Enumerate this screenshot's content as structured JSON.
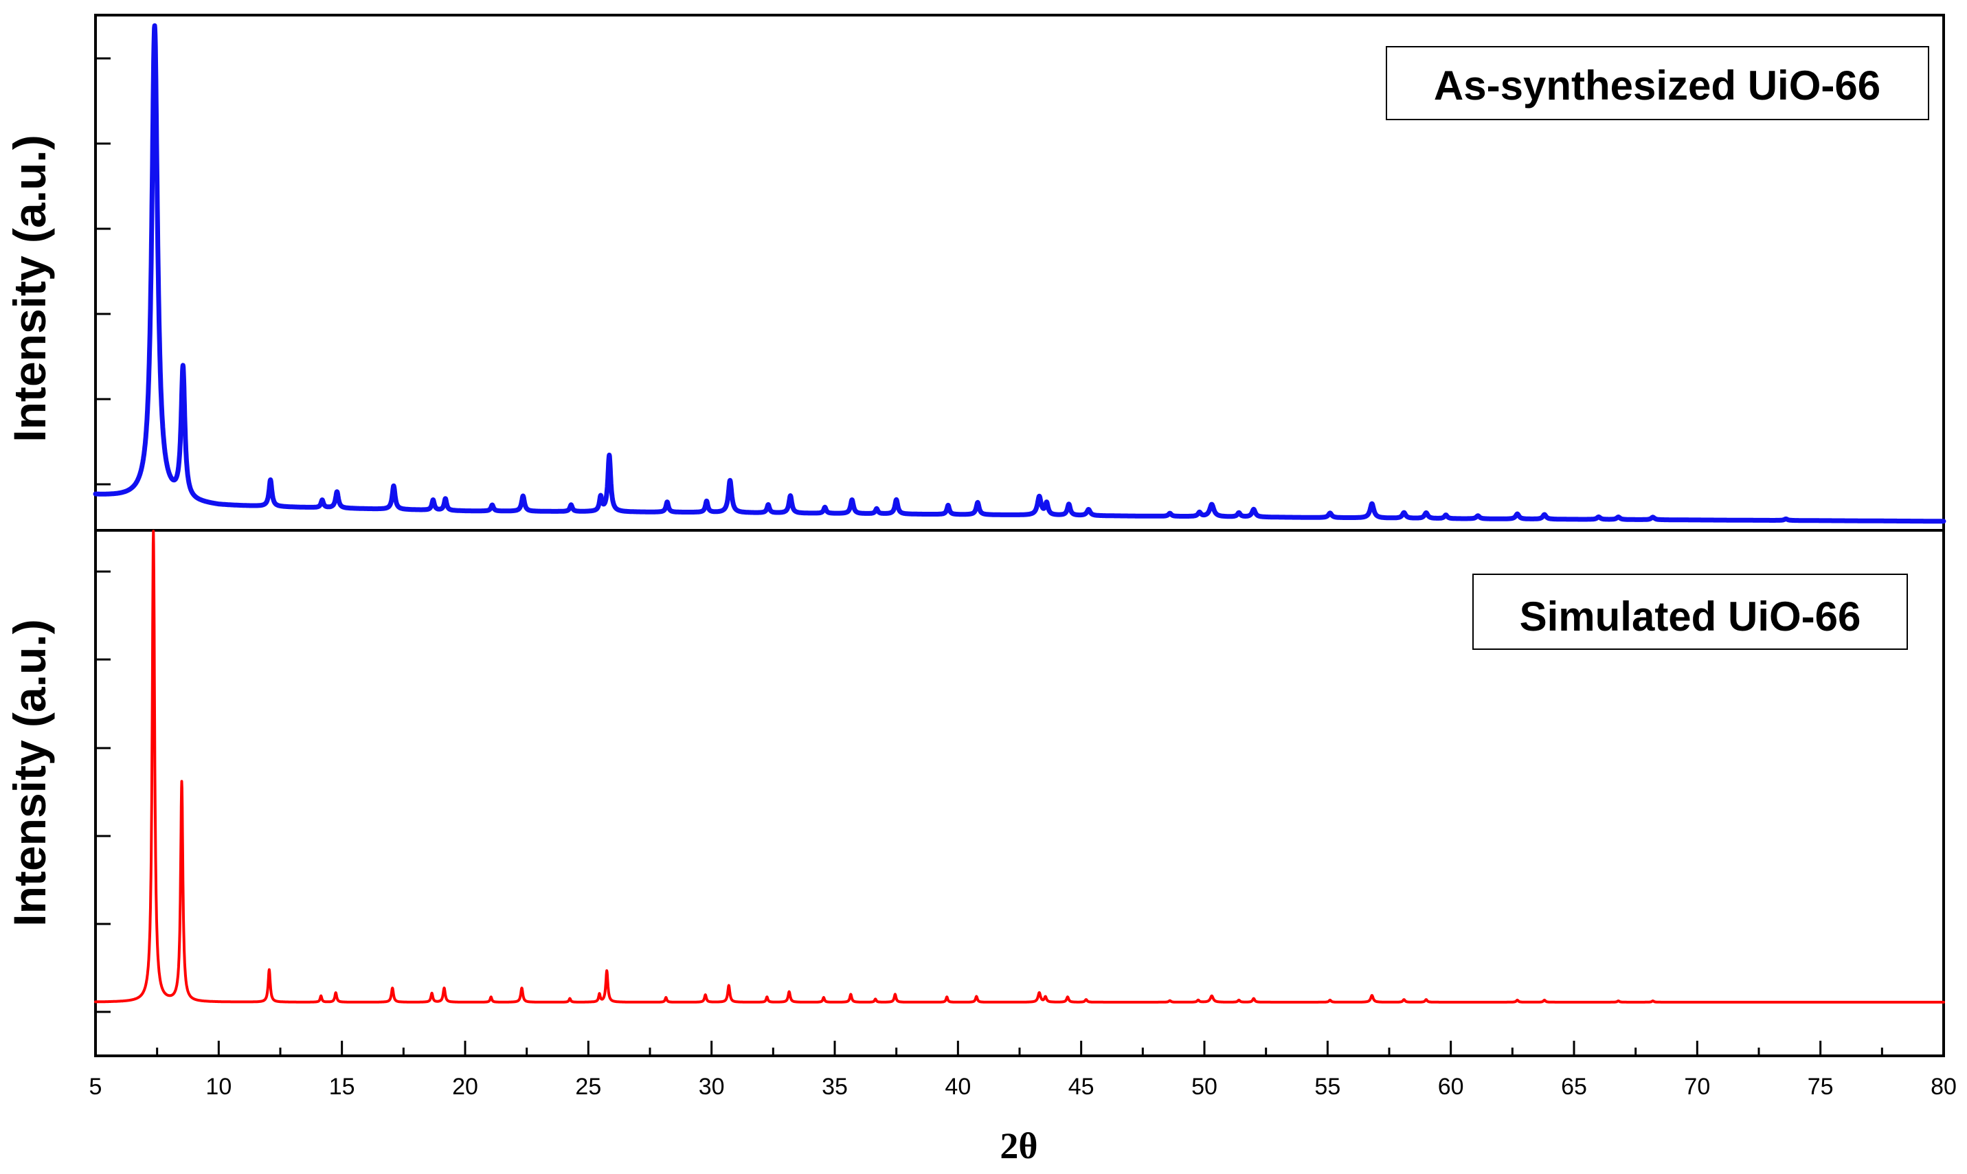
{
  "chart_data": {
    "type": "line",
    "layout": "two vertically stacked panels sharing the x axis",
    "xlabel": "2θ",
    "xlim": [
      5,
      80
    ],
    "x_ticks": [
      "5",
      "10",
      "15",
      "20",
      "25",
      "30",
      "35",
      "40",
      "45",
      "50",
      "55",
      "60",
      "65",
      "70",
      "75",
      "80"
    ],
    "y_tick_labels": "none",
    "grid": false,
    "panels": [
      {
        "position": "top",
        "ylabel": "Intensity (a.u.)",
        "ylim": [
          0,
          100
        ],
        "legend_text": "As-synthesized UiO-66",
        "legend_position": "top-right",
        "series": [
          {
            "name": "As-synthesized UiO-66",
            "color": "#1010f0",
            "style": "thick line",
            "baseline": [
              [
                5,
                6.5
              ],
              [
                10,
                4.5
              ],
              [
                20,
                3.5
              ],
              [
                30,
                3.2
              ],
              [
                45,
                2.6
              ],
              [
                60,
                2.0
              ],
              [
                80,
                1.5
              ]
            ],
            "peaks": [
              [
                7.4,
                92.5,
                0.14
              ],
              [
                8.55,
                25.5,
                0.09
              ],
              [
                12.1,
                5.2,
                0.07
              ],
              [
                14.2,
                1.5,
                0.06
              ],
              [
                14.8,
                3.2,
                0.07
              ],
              [
                17.1,
                4.6,
                0.07
              ],
              [
                18.7,
                2.0,
                0.06
              ],
              [
                19.2,
                2.3,
                0.06
              ],
              [
                21.1,
                1.2,
                0.06
              ],
              [
                22.35,
                3.0,
                0.07
              ],
              [
                24.3,
                1.3,
                0.06
              ],
              [
                25.5,
                2.8,
                0.06
              ],
              [
                25.85,
                11.0,
                0.07
              ],
              [
                28.2,
                2.0,
                0.06
              ],
              [
                29.8,
                2.2,
                0.06
              ],
              [
                30.75,
                6.3,
                0.08
              ],
              [
                32.3,
                1.6,
                0.06
              ],
              [
                33.2,
                3.4,
                0.07
              ],
              [
                34.6,
                1.2,
                0.06
              ],
              [
                35.7,
                2.7,
                0.07
              ],
              [
                36.7,
                1.0,
                0.06
              ],
              [
                37.5,
                2.8,
                0.07
              ],
              [
                39.6,
                1.8,
                0.06
              ],
              [
                40.8,
                2.4,
                0.07
              ],
              [
                43.3,
                3.6,
                0.09
              ],
              [
                43.6,
                2.3,
                0.07
              ],
              [
                44.5,
                2.2,
                0.07
              ],
              [
                45.3,
                1.2,
                0.08
              ],
              [
                48.6,
                0.6,
                0.07
              ],
              [
                49.8,
                0.8,
                0.07
              ],
              [
                50.3,
                2.4,
                0.1
              ],
              [
                51.4,
                0.8,
                0.07
              ],
              [
                52.0,
                1.5,
                0.08
              ],
              [
                55.1,
                0.9,
                0.08
              ],
              [
                56.8,
                2.8,
                0.09
              ],
              [
                58.1,
                1.1,
                0.08
              ],
              [
                59.0,
                1.1,
                0.08
              ],
              [
                59.8,
                0.7,
                0.07
              ],
              [
                61.1,
                0.6,
                0.08
              ],
              [
                62.7,
                1.0,
                0.08
              ],
              [
                63.8,
                0.9,
                0.08
              ],
              [
                66.0,
                0.5,
                0.08
              ],
              [
                66.8,
                0.5,
                0.08
              ],
              [
                68.2,
                0.5,
                0.08
              ],
              [
                73.6,
                0.3,
                0.08
              ]
            ]
          }
        ]
      },
      {
        "position": "bottom",
        "ylabel": "Intensity (a.u.)",
        "ylim": [
          0,
          100
        ],
        "legend_text": "Simulated UiO-66",
        "legend_position": "top-right",
        "series": [
          {
            "name": "Simulated UiO-66",
            "color": "#ff0000",
            "style": "line",
            "baseline": [
              [
                5,
                10
              ],
              [
                80,
                10
              ]
            ],
            "peaks": [
              [
                7.35,
                90.0,
                0.06
              ],
              [
                8.5,
                42.0,
                0.055
              ],
              [
                12.05,
                6.2,
                0.05
              ],
              [
                14.15,
                1.2,
                0.04
              ],
              [
                14.75,
                1.8,
                0.045
              ],
              [
                17.05,
                2.7,
                0.05
              ],
              [
                18.65,
                1.7,
                0.045
              ],
              [
                19.15,
                2.7,
                0.05
              ],
              [
                21.05,
                1.0,
                0.04
              ],
              [
                22.3,
                2.7,
                0.05
              ],
              [
                24.25,
                0.7,
                0.04
              ],
              [
                25.45,
                1.5,
                0.04
              ],
              [
                25.75,
                6.0,
                0.05
              ],
              [
                28.15,
                0.9,
                0.04
              ],
              [
                29.75,
                1.4,
                0.045
              ],
              [
                30.7,
                3.2,
                0.05
              ],
              [
                32.25,
                1.0,
                0.04
              ],
              [
                33.15,
                2.0,
                0.05
              ],
              [
                34.55,
                0.9,
                0.04
              ],
              [
                35.65,
                1.5,
                0.045
              ],
              [
                36.65,
                0.6,
                0.04
              ],
              [
                37.45,
                1.5,
                0.045
              ],
              [
                39.55,
                1.0,
                0.04
              ],
              [
                40.75,
                1.1,
                0.045
              ],
              [
                43.3,
                1.8,
                0.06
              ],
              [
                43.55,
                1.0,
                0.05
              ],
              [
                44.45,
                1.0,
                0.05
              ],
              [
                45.2,
                0.5,
                0.05
              ],
              [
                48.6,
                0.3,
                0.05
              ],
              [
                49.75,
                0.4,
                0.05
              ],
              [
                50.3,
                1.2,
                0.07
              ],
              [
                51.4,
                0.4,
                0.05
              ],
              [
                52.0,
                0.7,
                0.05
              ],
              [
                55.1,
                0.4,
                0.05
              ],
              [
                56.8,
                1.3,
                0.06
              ],
              [
                58.1,
                0.5,
                0.05
              ],
              [
                59.0,
                0.5,
                0.05
              ],
              [
                62.7,
                0.4,
                0.05
              ],
              [
                63.8,
                0.4,
                0.05
              ],
              [
                66.8,
                0.25,
                0.05
              ],
              [
                68.2,
                0.25,
                0.05
              ]
            ]
          }
        ]
      }
    ],
    "colors": {
      "axis": "#000000",
      "as_synthesized": "#1010f0",
      "simulated": "#ff0000"
    }
  }
}
